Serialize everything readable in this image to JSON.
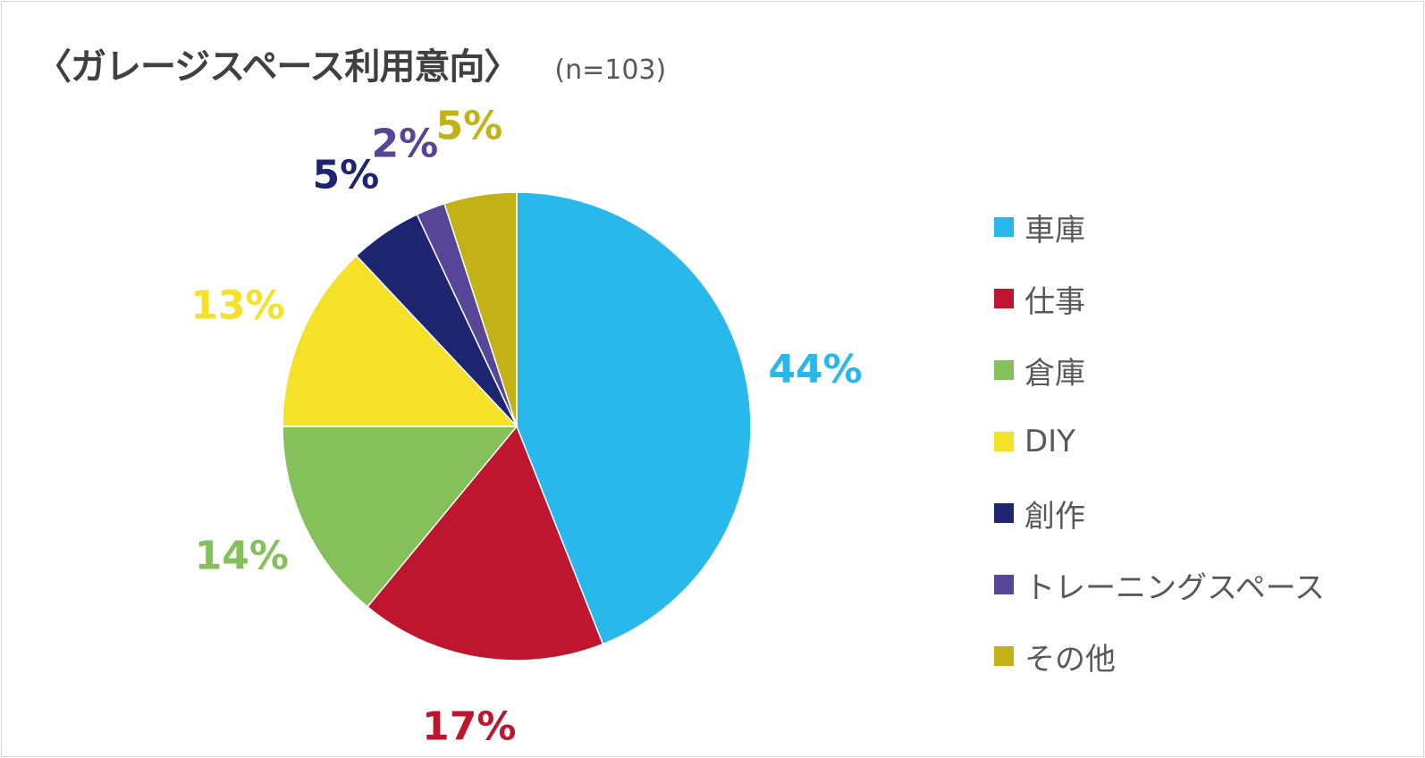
{
  "title": {
    "main": "〈ガレージスペース利用意向〉",
    "sub": "(n=103)"
  },
  "chart_data": {
    "type": "pie",
    "title": "〈ガレージスペース利用意向〉",
    "subtitle": "(n=103)",
    "legend_position": "right",
    "slices": [
      {
        "name": "車庫",
        "value": 44,
        "label": "44%",
        "color": "#29b8eb"
      },
      {
        "name": "仕事",
        "value": 17,
        "label": "17%",
        "color": "#bf1630"
      },
      {
        "name": "倉庫",
        "value": 14,
        "label": "14%",
        "color": "#86c05a"
      },
      {
        "name": "DIY",
        "value": 13,
        "label": "13%",
        "color": "#f4e128"
      },
      {
        "name": "創作",
        "value": 5,
        "label": "5%",
        "color": "#1d2570"
      },
      {
        "name": "トレーニングスペース",
        "value": 2,
        "label": "2%",
        "color": "#574597"
      },
      {
        "name": "その他",
        "value": 5,
        "label": "5%",
        "color": "#c3b217"
      }
    ]
  }
}
